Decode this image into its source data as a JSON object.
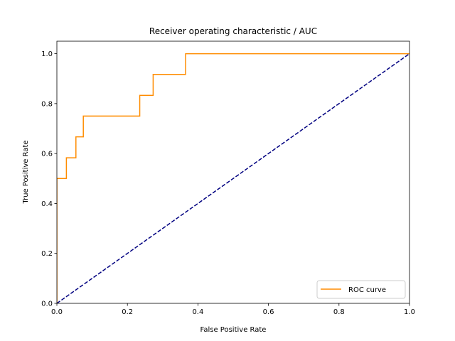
{
  "chart_data": {
    "type": "line",
    "title": "Receiver operating characteristic / AUC",
    "xlabel": "False Positive Rate",
    "ylabel": "True Positive Rate",
    "xlim": [
      0.0,
      1.0
    ],
    "ylim": [
      0.0,
      1.05
    ],
    "xticks": [
      0.0,
      0.2,
      0.4,
      0.6,
      0.8,
      1.0
    ],
    "yticks": [
      0.0,
      0.2,
      0.4,
      0.6,
      0.8,
      1.0
    ],
    "xtick_labels": [
      "0.0",
      "0.2",
      "0.4",
      "0.6",
      "0.8",
      "1.0"
    ],
    "ytick_labels": [
      "0.0",
      "0.2",
      "0.4",
      "0.6",
      "0.8",
      "1.0"
    ],
    "grid": false,
    "legend_position": "lower-right",
    "series": [
      {
        "name": "ROC curve",
        "color": "#ff8c00",
        "style": "solid",
        "x": [
          0.0,
          0.0,
          0.027,
          0.027,
          0.054,
          0.054,
          0.075,
          0.075,
          0.235,
          0.235,
          0.273,
          0.273,
          0.365,
          0.365,
          1.0
        ],
        "y": [
          0.0,
          0.5,
          0.5,
          0.583,
          0.583,
          0.667,
          0.667,
          0.75,
          0.75,
          0.833,
          0.833,
          0.917,
          0.917,
          1.0,
          1.0
        ]
      },
      {
        "color": "#000080",
        "style": "dashed",
        "x": [
          0.0,
          1.0
        ],
        "y": [
          0.0,
          1.0
        ]
      }
    ]
  }
}
